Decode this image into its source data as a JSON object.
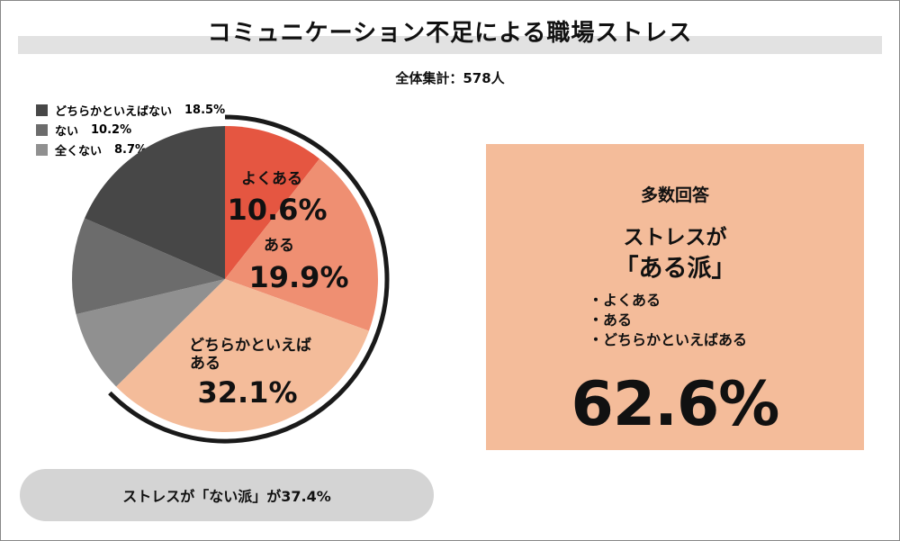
{
  "title": "コミュニケーション不足による職場ストレス",
  "total": "全体集計：578人",
  "colors": {
    "title_band": "#e2e2e2",
    "box_bg": "#f4bc9a",
    "pill_bg": "#d4d4d4"
  },
  "chart_data": {
    "type": "pie",
    "slices": [
      {
        "name": "よくある",
        "value": 10.6,
        "label": "10.6%",
        "color": "#e55641"
      },
      {
        "name": "ある",
        "value": 19.9,
        "label": "19.9%",
        "color": "#ef8f72"
      },
      {
        "name": "どちらかといえばある",
        "value": 32.1,
        "label": "32.1%",
        "color": "#f4bc9a"
      },
      {
        "name": "全くない",
        "value": 8.7,
        "label": "8.7%",
        "color": "#909090"
      },
      {
        "name": "ない",
        "value": 10.2,
        "label": "10.2%",
        "color": "#6c6c6c"
      },
      {
        "name": "どちらかといえばない",
        "value": 18.5,
        "label": "18.5%",
        "color": "#474747"
      }
    ],
    "slice_text": {
      "s0_line1": "よくある",
      "s0_value": "10.6%",
      "s1_line1": "ある",
      "s1_value": "19.9%",
      "s2_line1": "どちらかといえば",
      "s2_line2": "ある",
      "s2_value": "32.1%"
    },
    "legend": [
      {
        "label": "どちらかといえばない",
        "pct": "18.5%",
        "color": "#474747"
      },
      {
        "label": "ない",
        "pct": "10.2%",
        "color": "#6c6c6c"
      },
      {
        "label": "全くない",
        "pct": "8.7%",
        "color": "#909090"
      }
    ]
  },
  "summary_box": {
    "heading": "多数回答",
    "sub_line1": "ストレスが",
    "sub_line2": "「ある派」",
    "items": [
      "・よくある",
      "・ある",
      "・どちらかといえばある"
    ],
    "value": "62.6%"
  },
  "pill": {
    "text": "ストレスが「ない派」が37.4%"
  }
}
